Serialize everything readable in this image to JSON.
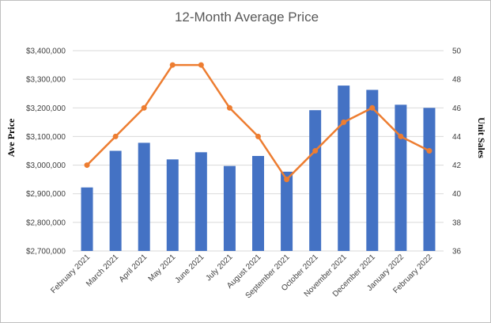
{
  "chart_data": {
    "type": "bar",
    "title": "12-Month Average Price",
    "ylabel": "Ave Price",
    "y2label": "Unit Sales",
    "ylim": [
      2700000,
      3400000
    ],
    "y2lim": [
      36,
      50
    ],
    "yticks": [
      "$2,700,000",
      "$2,800,000",
      "$2,900,000",
      "$3,000,000",
      "$3,100,000",
      "$3,200,000",
      "$3,300,000",
      "$3,400,000"
    ],
    "y2ticks": [
      "36",
      "38",
      "40",
      "42",
      "44",
      "46",
      "48",
      "50"
    ],
    "grid": true,
    "categories": [
      "February 2021",
      "March 2021",
      "April 2021",
      "May 2021",
      "June 2021",
      "July 2021",
      "August 2021",
      "September 2021",
      "October 2021",
      "November 2021",
      "December 2021",
      "January 2022",
      "February 2022"
    ],
    "series": [
      {
        "type": "bar",
        "axis": "left",
        "color": "#4472c4",
        "values": [
          2922000,
          3050000,
          3078000,
          3020000,
          3045000,
          2997000,
          3032000,
          2977000,
          3192000,
          3278000,
          3263000,
          3211000,
          3200000
        ]
      },
      {
        "type": "line",
        "axis": "right",
        "color": "#ed7d31",
        "values": [
          42,
          44,
          46,
          49,
          49,
          46,
          44,
          41,
          43,
          45,
          46,
          44,
          43
        ]
      }
    ]
  }
}
